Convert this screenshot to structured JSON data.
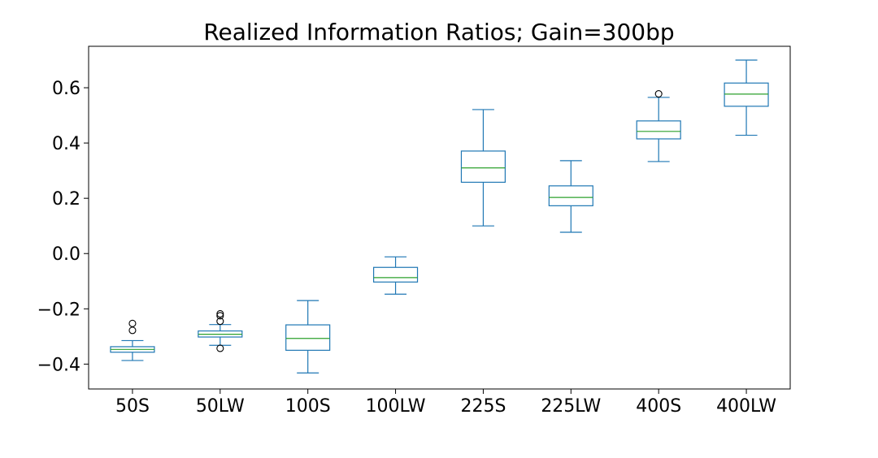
{
  "chart_data": {
    "type": "box",
    "title": "Realized Information Ratios; Gain=300bp",
    "xlabel": "",
    "ylabel": "",
    "categories": [
      "50S",
      "50LW",
      "100S",
      "100LW",
      "225S",
      "225LW",
      "400S",
      "400LW"
    ],
    "y_ticks": [
      -0.4,
      -0.2,
      0.0,
      0.2,
      0.4,
      0.6
    ],
    "y_tick_labels": [
      "−0.4",
      "−0.2",
      "0.0",
      "0.2",
      "0.4",
      "0.6"
    ],
    "ylim": [
      -0.49,
      0.75
    ],
    "grid": false,
    "boxes": [
      {
        "label": "50S",
        "whisker_low": -0.387,
        "q1": -0.357,
        "median": -0.347,
        "q3": -0.337,
        "whisker_high": -0.315,
        "outliers": [
          -0.253,
          -0.278
        ]
      },
      {
        "label": "50LW",
        "whisker_low": -0.332,
        "q1": -0.302,
        "median": -0.292,
        "q3": -0.28,
        "whisker_high": -0.257,
        "outliers": [
          -0.218,
          -0.225,
          -0.245,
          -0.343
        ]
      },
      {
        "label": "100S",
        "whisker_low": -0.432,
        "q1": -0.35,
        "median": -0.307,
        "q3": -0.258,
        "whisker_high": -0.17,
        "outliers": []
      },
      {
        "label": "100LW",
        "whisker_low": -0.147,
        "q1": -0.103,
        "median": -0.087,
        "q3": -0.05,
        "whisker_high": -0.012,
        "outliers": []
      },
      {
        "label": "225S",
        "whisker_low": 0.1,
        "q1": 0.258,
        "median": 0.31,
        "q3": 0.371,
        "whisker_high": 0.521,
        "outliers": []
      },
      {
        "label": "225LW",
        "whisker_low": 0.077,
        "q1": 0.173,
        "median": 0.203,
        "q3": 0.245,
        "whisker_high": 0.336,
        "outliers": []
      },
      {
        "label": "400S",
        "whisker_low": 0.333,
        "q1": 0.415,
        "median": 0.442,
        "q3": 0.48,
        "whisker_high": 0.565,
        "outliers": [
          0.578
        ]
      },
      {
        "label": "400LW",
        "whisker_low": 0.428,
        "q1": 0.533,
        "median": 0.577,
        "q3": 0.617,
        "whisker_high": 0.7,
        "outliers": []
      }
    ],
    "colors": {
      "box": "#1f77b4",
      "median": "#2ca02c",
      "outlier": "#000000",
      "axes": "#000000"
    }
  }
}
